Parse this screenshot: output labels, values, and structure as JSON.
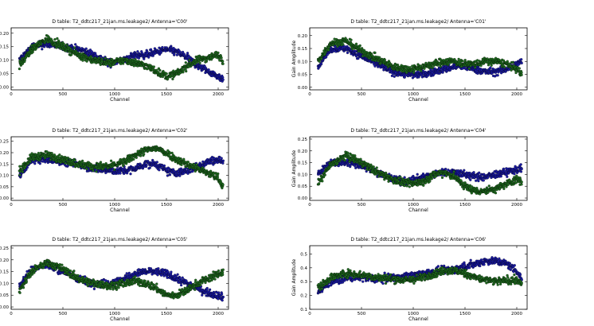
{
  "colors": {
    "series_blue": "#1a1aa6",
    "series_green": "#1f6b1f",
    "edge": "#000000"
  },
  "chart_data": [
    {
      "type": "scatter",
      "title": "D table: T2_ddtc217_21jan.ms.leakage2/     Antenna='C00'",
      "xlabel": "Channel",
      "ylabel": "",
      "xlim": [
        0,
        2100
      ],
      "ylim": [
        -0.01,
        0.22
      ],
      "xticks": [
        0,
        500,
        1000,
        1500,
        2000
      ],
      "yticks": [
        0.0,
        0.05,
        0.1,
        0.15,
        0.2
      ],
      "ytick_labels": [
        "0.00",
        "0.05",
        "0.10",
        "0.15",
        "0.20"
      ],
      "grid": false,
      "series": [
        {
          "color": "#1a1aa6",
          "x": [
            80,
            200,
            350,
            500,
            650,
            800,
            950,
            1100,
            1200,
            1300,
            1400,
            1500,
            1600,
            1700,
            1800,
            1900,
            2000,
            2048
          ],
          "y": [
            0.1,
            0.15,
            0.16,
            0.15,
            0.14,
            0.12,
            0.09,
            0.1,
            0.12,
            0.12,
            0.13,
            0.14,
            0.13,
            0.11,
            0.08,
            0.06,
            0.04,
            0.03
          ]
        },
        {
          "color": "#1f6b1f",
          "x": [
            80,
            200,
            350,
            500,
            650,
            800,
            950,
            1100,
            1200,
            1300,
            1400,
            1500,
            1600,
            1700,
            1800,
            1900,
            2000,
            2048
          ],
          "y": [
            0.08,
            0.14,
            0.18,
            0.15,
            0.12,
            0.1,
            0.09,
            0.1,
            0.09,
            0.08,
            0.06,
            0.04,
            0.05,
            0.08,
            0.1,
            0.11,
            0.12,
            0.1
          ]
        }
      ]
    },
    {
      "type": "scatter",
      "title": "D table: T2_ddtc217_21jan.ms.leakage2/     Antenna='C01'",
      "xlabel": "Channel",
      "ylabel": "Gain Amplitude",
      "xlim": [
        0,
        2100
      ],
      "ylim": [
        -0.01,
        0.23
      ],
      "xticks": [
        0,
        500,
        1000,
        1500,
        2000
      ],
      "yticks": [
        0.0,
        0.05,
        0.1,
        0.15,
        0.2
      ],
      "ytick_labels": [
        "0.00",
        "0.05",
        "0.10",
        "0.15",
        "0.20"
      ],
      "grid": false,
      "series": [
        {
          "color": "#1a1aa6",
          "x": [
            80,
            200,
            350,
            500,
            650,
            800,
            950,
            1100,
            1200,
            1300,
            1400,
            1500,
            1600,
            1700,
            1800,
            1900,
            2000,
            2048
          ],
          "y": [
            0.08,
            0.15,
            0.15,
            0.12,
            0.09,
            0.06,
            0.05,
            0.05,
            0.06,
            0.07,
            0.08,
            0.08,
            0.07,
            0.06,
            0.06,
            0.07,
            0.09,
            0.1
          ]
        },
        {
          "color": "#1f6b1f",
          "x": [
            80,
            200,
            350,
            500,
            650,
            800,
            950,
            1100,
            1200,
            1300,
            1400,
            1500,
            1600,
            1700,
            1800,
            1900,
            2000,
            2048
          ],
          "y": [
            0.1,
            0.17,
            0.18,
            0.14,
            0.11,
            0.08,
            0.07,
            0.08,
            0.09,
            0.1,
            0.1,
            0.09,
            0.09,
            0.1,
            0.1,
            0.09,
            0.07,
            0.05
          ]
        }
      ]
    },
    {
      "type": "scatter",
      "title": "D table: T2_ddtc217_21jan.ms.leakage2/     Antenna='C02'",
      "xlabel": "Channel",
      "ylabel": "",
      "xlim": [
        0,
        2100
      ],
      "ylim": [
        -0.01,
        0.27
      ],
      "xticks": [
        0,
        500,
        1000,
        1500,
        2000
      ],
      "yticks": [
        0.0,
        0.05,
        0.1,
        0.15,
        0.2,
        0.25
      ],
      "ytick_labels": [
        "0.00",
        "0.05",
        "0.10",
        "0.15",
        "0.20",
        "0.25"
      ],
      "grid": false,
      "series": [
        {
          "color": "#1a1aa6",
          "x": [
            80,
            200,
            350,
            500,
            650,
            800,
            950,
            1100,
            1200,
            1300,
            1400,
            1500,
            1600,
            1700,
            1800,
            1900,
            2000,
            2048
          ],
          "y": [
            0.1,
            0.17,
            0.17,
            0.16,
            0.15,
            0.13,
            0.12,
            0.12,
            0.13,
            0.15,
            0.15,
            0.12,
            0.11,
            0.12,
            0.14,
            0.16,
            0.17,
            0.16
          ]
        },
        {
          "color": "#1f6b1f",
          "x": [
            80,
            200,
            350,
            500,
            650,
            800,
            950,
            1100,
            1200,
            1300,
            1400,
            1500,
            1600,
            1700,
            1800,
            1900,
            2000,
            2048
          ],
          "y": [
            0.12,
            0.18,
            0.19,
            0.17,
            0.15,
            0.14,
            0.14,
            0.16,
            0.19,
            0.21,
            0.22,
            0.2,
            0.17,
            0.15,
            0.13,
            0.11,
            0.09,
            0.05
          ]
        }
      ]
    },
    {
      "type": "scatter",
      "title": "D table: T2_ddtc217_21jan.ms.leakage2/     Antenna='C04'",
      "xlabel": "Channel",
      "ylabel": "Gain Amplitude",
      "xlim": [
        0,
        2100
      ],
      "ylim": [
        -0.01,
        0.26
      ],
      "xticks": [
        0,
        500,
        1000,
        1500,
        2000
      ],
      "yticks": [
        0.0,
        0.05,
        0.1,
        0.15,
        0.2,
        0.25
      ],
      "ytick_labels": [
        "0.00",
        "0.05",
        "0.10",
        "0.15",
        "0.20",
        "0.25"
      ],
      "grid": false,
      "series": [
        {
          "color": "#1a1aa6",
          "x": [
            80,
            200,
            350,
            500,
            650,
            800,
            950,
            1100,
            1200,
            1300,
            1400,
            1500,
            1600,
            1700,
            1800,
            1900,
            2000,
            2048
          ],
          "y": [
            0.1,
            0.15,
            0.15,
            0.14,
            0.11,
            0.08,
            0.07,
            0.09,
            0.1,
            0.11,
            0.11,
            0.1,
            0.09,
            0.09,
            0.1,
            0.11,
            0.12,
            0.13
          ]
        },
        {
          "color": "#1f6b1f",
          "x": [
            80,
            200,
            350,
            500,
            650,
            800,
            950,
            1100,
            1200,
            1300,
            1400,
            1500,
            1600,
            1700,
            1800,
            1900,
            2000,
            2048
          ],
          "y": [
            0.06,
            0.14,
            0.18,
            0.15,
            0.11,
            0.08,
            0.06,
            0.07,
            0.1,
            0.11,
            0.09,
            0.05,
            0.03,
            0.03,
            0.04,
            0.06,
            0.08,
            0.07
          ]
        }
      ]
    },
    {
      "type": "scatter",
      "title": "D table: T2_ddtc217_21jan.ms.leakage2/     Antenna='C05'",
      "xlabel": "Channel",
      "ylabel": "",
      "xlim": [
        0,
        2100
      ],
      "ylim": [
        -0.01,
        0.26
      ],
      "xticks": [
        0,
        500,
        1000,
        1500,
        2000
      ],
      "yticks": [
        0.0,
        0.05,
        0.1,
        0.15,
        0.2,
        0.25
      ],
      "ytick_labels": [
        "0.00",
        "0.05",
        "0.10",
        "0.15",
        "0.20",
        "0.25"
      ],
      "grid": false,
      "series": [
        {
          "color": "#1a1aa6",
          "x": [
            80,
            200,
            350,
            500,
            650,
            800,
            950,
            1100,
            1200,
            1300,
            1400,
            1500,
            1600,
            1700,
            1800,
            1900,
            2000,
            2048
          ],
          "y": [
            0.09,
            0.16,
            0.18,
            0.15,
            0.12,
            0.1,
            0.1,
            0.12,
            0.14,
            0.15,
            0.15,
            0.14,
            0.12,
            0.1,
            0.08,
            0.06,
            0.05,
            0.04
          ]
        },
        {
          "color": "#1f6b1f",
          "x": [
            80,
            200,
            350,
            500,
            650,
            800,
            950,
            1100,
            1200,
            1300,
            1400,
            1500,
            1600,
            1700,
            1800,
            1900,
            2000,
            2048
          ],
          "y": [
            0.07,
            0.15,
            0.19,
            0.16,
            0.12,
            0.1,
            0.09,
            0.1,
            0.11,
            0.1,
            0.08,
            0.05,
            0.05,
            0.07,
            0.1,
            0.12,
            0.14,
            0.15
          ]
        }
      ]
    },
    {
      "type": "scatter",
      "title": "D table: T2_ddtc217_21jan.ms.leakage2/     Antenna='C06'",
      "xlabel": "Channel",
      "ylabel": "Gain Amplitude",
      "xlim": [
        0,
        2100
      ],
      "ylim": [
        0.1,
        0.56
      ],
      "xticks": [
        0,
        500,
        1000,
        1500,
        2000
      ],
      "yticks": [
        0.1,
        0.2,
        0.3,
        0.4,
        0.5
      ],
      "ytick_labels": [
        "0.1",
        "0.2",
        "0.3",
        "0.4",
        "0.5"
      ],
      "grid": false,
      "series": [
        {
          "color": "#1a1aa6",
          "x": [
            80,
            200,
            350,
            500,
            650,
            800,
            950,
            1100,
            1200,
            1300,
            1400,
            1500,
            1600,
            1700,
            1800,
            1900,
            2000,
            2048
          ],
          "y": [
            0.22,
            0.3,
            0.33,
            0.33,
            0.32,
            0.33,
            0.34,
            0.36,
            0.37,
            0.38,
            0.39,
            0.41,
            0.43,
            0.45,
            0.45,
            0.43,
            0.38,
            0.32
          ]
        },
        {
          "color": "#1f6b1f",
          "x": [
            80,
            200,
            350,
            500,
            650,
            800,
            950,
            1100,
            1200,
            1300,
            1400,
            1500,
            1600,
            1700,
            1800,
            1900,
            2000,
            2048
          ],
          "y": [
            0.25,
            0.33,
            0.36,
            0.35,
            0.33,
            0.32,
            0.31,
            0.33,
            0.36,
            0.38,
            0.38,
            0.36,
            0.33,
            0.31,
            0.3,
            0.31,
            0.31,
            0.28
          ]
        }
      ]
    }
  ]
}
